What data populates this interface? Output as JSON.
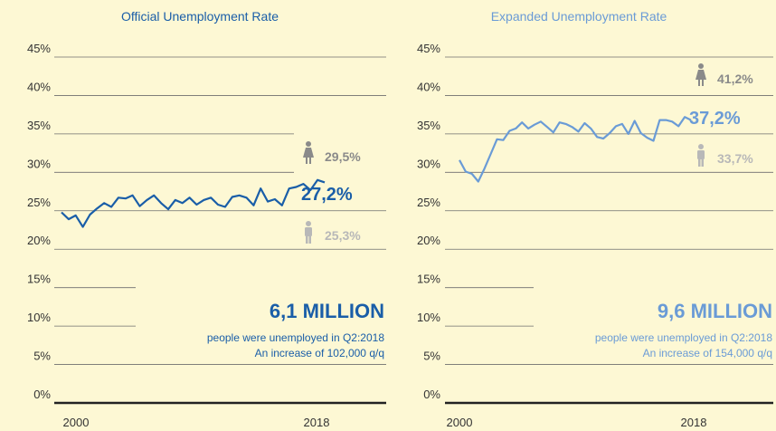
{
  "colors": {
    "background": "#fdf8d4",
    "official": "#1a5ea8",
    "expanded": "#6a9bd6",
    "muted": "#8a8a8a",
    "male": "#b8b8b8",
    "axis": "#222222",
    "grid": "#6e6e6e"
  },
  "chart_data": [
    {
      "type": "line",
      "title": "Official Unemployment Rate",
      "ylim": [
        0,
        45
      ],
      "yticks": [
        "0%",
        "5%",
        "10%",
        "15%",
        "20%",
        "25%",
        "30%",
        "35%",
        "40%",
        "45%"
      ],
      "xtick_labels": [
        "2000",
        "2018"
      ],
      "xlim": [
        2000,
        2018.5
      ],
      "series": [
        {
          "x": [
            2000,
            2000.5,
            2001,
            2001.5,
            2002,
            2002.5,
            2003,
            2003.5,
            2004,
            2004.5,
            2005,
            2005.5,
            2006,
            2006.5,
            2007,
            2007.5,
            2008,
            2008.5,
            2009,
            2009.5,
            2010,
            2010.5,
            2011,
            2011.5,
            2012,
            2012.5,
            2013,
            2013.5,
            2014,
            2014.5,
            2015,
            2015.5,
            2016,
            2016.5,
            2017,
            2017.5,
            2018,
            2018.5
          ],
          "values": [
            24.8,
            23.9,
            24.4,
            22.9,
            24.5,
            25.3,
            26.0,
            25.5,
            26.7,
            26.6,
            27.0,
            25.6,
            26.4,
            27.0,
            26.0,
            25.2,
            26.4,
            26.0,
            26.7,
            25.8,
            26.4,
            26.7,
            25.8,
            25.5,
            26.8,
            27.0,
            26.7,
            25.7,
            27.9,
            26.2,
            26.5,
            25.7,
            27.9,
            28.1,
            28.5,
            27.7,
            29.0,
            28.7
          ]
        }
      ],
      "labels": {
        "female": "29,5%",
        "overall": "27,2%",
        "male": "25,3%"
      },
      "headline": "6,1 MILLION",
      "note_lines": [
        "people were unemployed in Q2:2018",
        "An increase of 102,000 q/q"
      ]
    },
    {
      "type": "line",
      "title": "Expanded Unemployment Rate",
      "ylim": [
        0,
        45
      ],
      "yticks": [
        "0%",
        "5%",
        "10%",
        "15%",
        "20%",
        "25%",
        "30%",
        "35%",
        "40%",
        "45%"
      ],
      "xtick_labels": [
        "2000",
        "2018"
      ],
      "xlim": [
        2000,
        2018.5
      ],
      "series": [
        {
          "x": [
            2000,
            2000.5,
            2001,
            2001.5,
            2002,
            2002.5,
            2003,
            2003.5,
            2004,
            2004.5,
            2005,
            2005.5,
            2006,
            2006.5,
            2007,
            2007.5,
            2008,
            2008.5,
            2009,
            2009.5,
            2010,
            2010.5,
            2011,
            2011.5,
            2012,
            2012.5,
            2013,
            2013.5,
            2014,
            2014.5,
            2015,
            2015.5,
            2016,
            2016.5,
            2017,
            2017.5,
            2018,
            2018.5
          ],
          "values": [
            31.6,
            30.1,
            29.8,
            28.8,
            30.5,
            32.4,
            34.3,
            34.2,
            35.4,
            35.7,
            36.5,
            35.7,
            36.2,
            36.6,
            35.9,
            35.2,
            36.5,
            36.3,
            35.9,
            35.3,
            36.4,
            35.7,
            34.6,
            34.4,
            35.1,
            36.0,
            36.3,
            35.0,
            36.7,
            35.1,
            34.5,
            34.1,
            36.8,
            36.8,
            36.6,
            36.0,
            37.2,
            36.8
          ]
        }
      ],
      "labels": {
        "female": "41,2%",
        "overall": "37,2%",
        "male": "33,7%"
      },
      "headline": "9,6 MILLION",
      "note_lines": [
        "people were unemployed in Q2:2018",
        "An increase of 154,000 q/q"
      ]
    }
  ]
}
